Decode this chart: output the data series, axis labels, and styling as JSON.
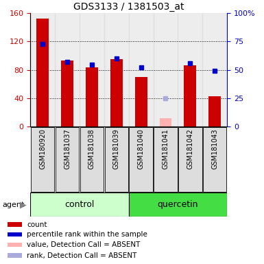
{
  "title": "GDS3133 / 1381503_at",
  "samples": [
    "GSM180920",
    "GSM181037",
    "GSM181038",
    "GSM181039",
    "GSM181040",
    "GSM181041",
    "GSM181042",
    "GSM181043"
  ],
  "group_labels": [
    "control",
    "quercetin"
  ],
  "count_values": [
    152,
    93,
    84,
    95,
    70,
    null,
    87,
    43
  ],
  "count_absent_values": [
    null,
    null,
    null,
    null,
    null,
    12,
    null,
    null
  ],
  "rank_values": [
    73,
    57,
    55,
    60,
    52,
    null,
    56,
    49
  ],
  "rank_absent_values": [
    null,
    null,
    null,
    null,
    null,
    25,
    null,
    null
  ],
  "count_color": "#cc0000",
  "count_absent_color": "#ffb0b0",
  "rank_color": "#0000cc",
  "rank_absent_color": "#aaaadd",
  "left_ylim": [
    0,
    160
  ],
  "right_ylim": [
    0,
    100
  ],
  "left_yticks": [
    0,
    40,
    80,
    120,
    160
  ],
  "right_yticks": [
    0,
    25,
    50,
    75,
    100
  ],
  "right_yticklabels": [
    "0",
    "25",
    "50",
    "75",
    "100%"
  ],
  "control_bg": "#ccffcc",
  "quercetin_bg": "#44dd44",
  "sample_bg_color": "#dddddd",
  "bar_width": 0.5,
  "marker_size": 5,
  "legend_items": [
    {
      "label": "count",
      "color": "#cc0000"
    },
    {
      "label": "percentile rank within the sample",
      "color": "#0000cc"
    },
    {
      "label": "value, Detection Call = ABSENT",
      "color": "#ffb0b0"
    },
    {
      "label": "rank, Detection Call = ABSENT",
      "color": "#aaaadd"
    }
  ]
}
